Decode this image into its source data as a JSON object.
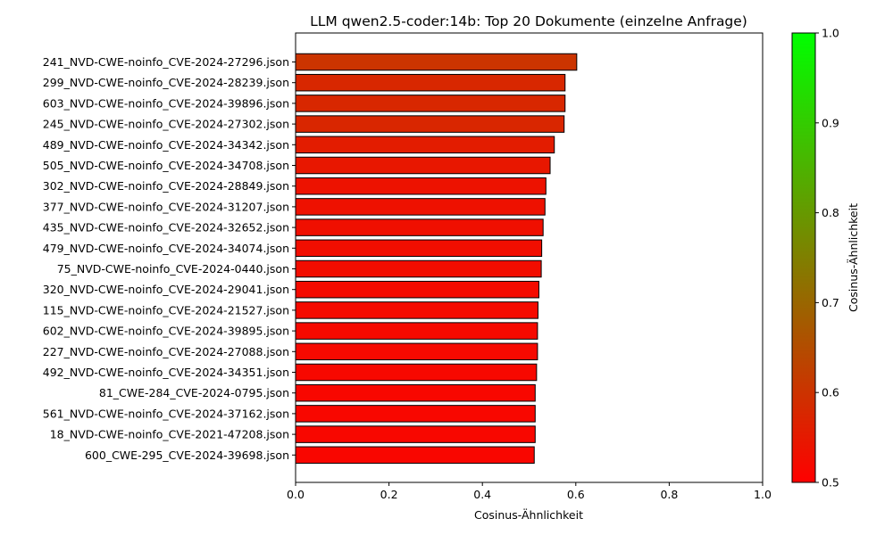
{
  "chart_data": {
    "type": "bar",
    "orientation": "horizontal",
    "title": "LLM qwen2.5-coder:14b: Top 20 Dokumente (einzelne Anfrage)",
    "xlabel": "Cosinus-Ähnlichkeit",
    "ylabel": "",
    "xlim": [
      0,
      1
    ],
    "xticks": [
      "0.0",
      "0.2",
      "0.4",
      "0.6",
      "0.8",
      "1.0"
    ],
    "xtick_values": [
      0,
      0.2,
      0.4,
      0.6,
      0.8,
      1.0
    ],
    "grid": false,
    "categories": [
      "241_NVD-CWE-noinfo_CVE-2024-27296.json",
      "299_NVD-CWE-noinfo_CVE-2024-28239.json",
      "603_NVD-CWE-noinfo_CVE-2024-39896.json",
      "245_NVD-CWE-noinfo_CVE-2024-27302.json",
      "489_NVD-CWE-noinfo_CVE-2024-34342.json",
      "505_NVD-CWE-noinfo_CVE-2024-34708.json",
      "302_NVD-CWE-noinfo_CVE-2024-28849.json",
      "377_NVD-CWE-noinfo_CVE-2024-31207.json",
      "435_NVD-CWE-noinfo_CVE-2024-32652.json",
      "479_NVD-CWE-noinfo_CVE-2024-34074.json",
      "75_NVD-CWE-noinfo_CVE-2024-0440.json",
      "320_NVD-CWE-noinfo_CVE-2024-29041.json",
      "115_NVD-CWE-noinfo_CVE-2024-21527.json",
      "602_NVD-CWE-noinfo_CVE-2024-39895.json",
      "227_NVD-CWE-noinfo_CVE-2024-27088.json",
      "492_NVD-CWE-noinfo_CVE-2024-34351.json",
      "81_CWE-284_CVE-2024-0795.json",
      "561_NVD-CWE-noinfo_CVE-2024-37162.json",
      "18_NVD-CWE-noinfo_CVE-2021-47208.json",
      "600_CWE-295_CVE-2024-39698.json"
    ],
    "values": [
      0.602,
      0.577,
      0.577,
      0.575,
      0.554,
      0.545,
      0.536,
      0.534,
      0.53,
      0.527,
      0.526,
      0.521,
      0.519,
      0.518,
      0.518,
      0.516,
      0.513,
      0.513,
      0.513,
      0.511
    ],
    "colorbar": {
      "label": "Cosinus-Ähnlichkeit",
      "range": [
        0.5,
        1.0
      ],
      "ticks": [
        "0.5",
        "0.6",
        "0.7",
        "0.8",
        "0.9",
        "1.0"
      ],
      "tick_values": [
        0.5,
        0.6,
        0.7,
        0.8,
        0.9,
        1.0
      ],
      "color_low": "#ff0000",
      "color_high": "#00ff00"
    },
    "bar_edge_color": "#000000"
  }
}
